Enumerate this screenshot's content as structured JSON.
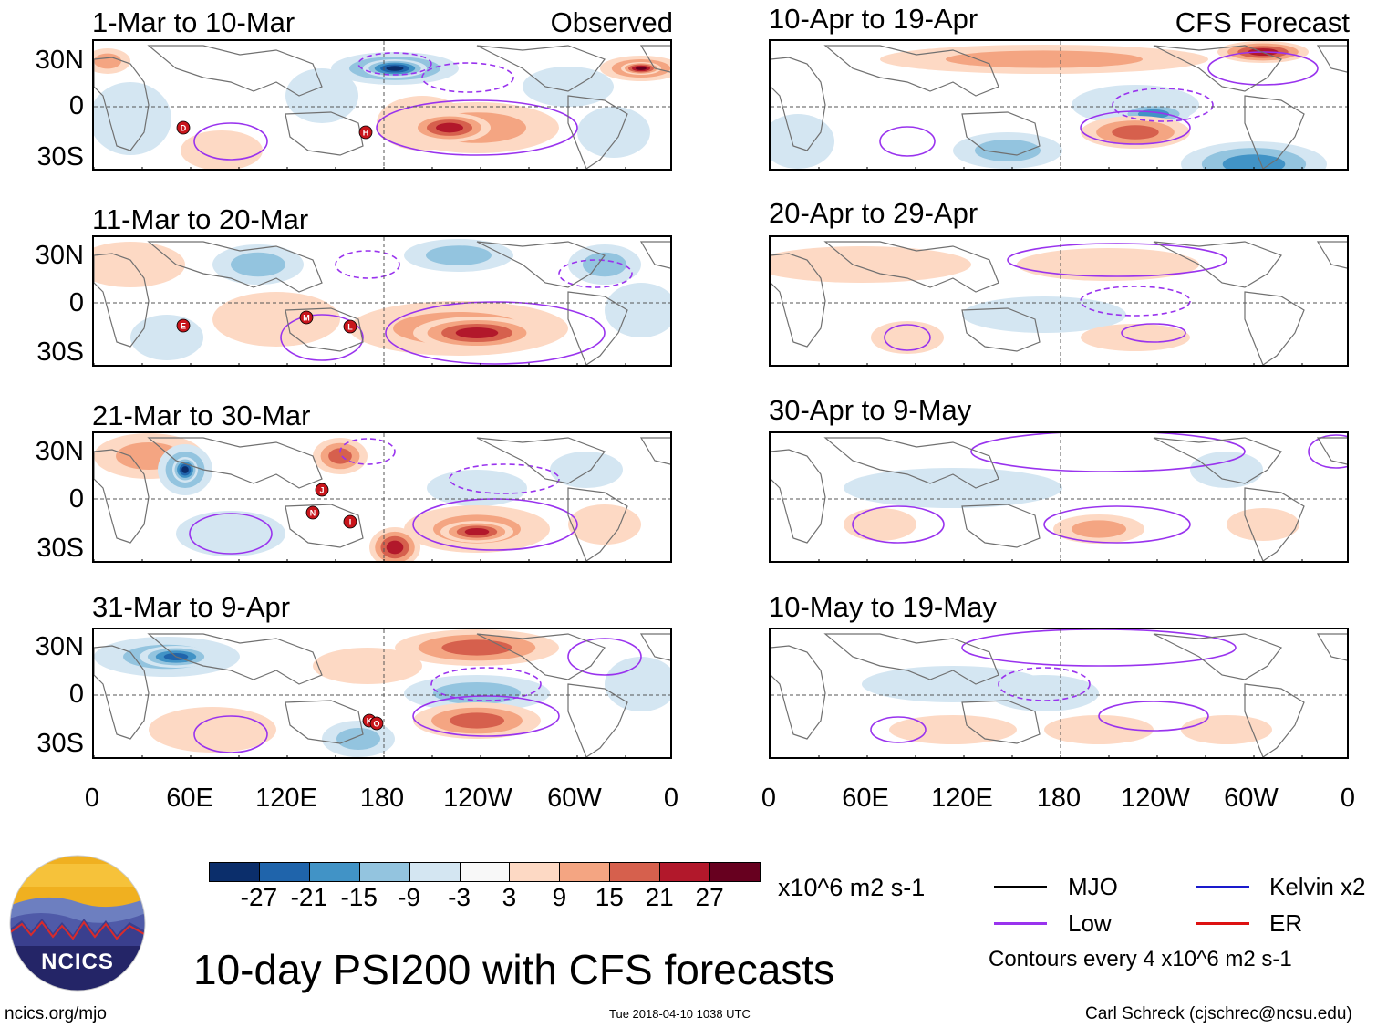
{
  "panels": [
    {
      "title": "1-Mar to 10-Mar",
      "tag": "Observed"
    },
    {
      "title": "11-Mar to 20-Mar",
      "tag": ""
    },
    {
      "title": "21-Mar to 30-Mar",
      "tag": ""
    },
    {
      "title": "31-Mar to 9-Apr",
      "tag": ""
    },
    {
      "title": "10-Apr to 19-Apr",
      "tag": "CFS Forecast"
    },
    {
      "title": "20-Apr to 29-Apr",
      "tag": ""
    },
    {
      "title": "30-Apr to 9-May",
      "tag": ""
    },
    {
      "title": "10-May to 19-May",
      "tag": ""
    }
  ],
  "lat_labels": [
    "30N",
    "0",
    "30S"
  ],
  "lon_labels": [
    "0",
    "60E",
    "120E",
    "180",
    "120W",
    "60W",
    "0"
  ],
  "colorbar": {
    "colors": [
      "#0b2e6b",
      "#1f64ab",
      "#4193c6",
      "#93c4df",
      "#d4e6f2",
      "#f8f8f8",
      "#fdd9c4",
      "#f4a582",
      "#d6604d",
      "#b2182b",
      "#67001f"
    ],
    "labels": [
      "-27",
      "-21",
      "-15",
      "-9",
      "-3",
      "3",
      "9",
      "15",
      "21",
      "27"
    ],
    "units": "x10^6 m2 s-1"
  },
  "legend": {
    "items": [
      {
        "label": "MJO",
        "color": "#000000"
      },
      {
        "label": "Kelvin x2",
        "color": "#1a1acc"
      },
      {
        "label": "Low",
        "color": "#9933ee"
      },
      {
        "label": "ER",
        "color": "#dd1111"
      }
    ],
    "contour_note": "Contours every 4 x10^6 m2 s-1"
  },
  "logo_text": "NCICS",
  "main_title": "10-day PSI200 with CFS forecasts",
  "footer": {
    "left": "ncics.org/mjo",
    "center": "Tue 2018-04-10 1038 UTC",
    "right": "Carl Schreck (cjschrec@ncsu.edu)"
  },
  "storm_markers": [
    [
      "D",
      "H"
    ],
    [
      "E",
      "M",
      "L"
    ],
    [
      "J",
      "N",
      "I"
    ],
    [
      "K",
      "O"
    ],
    [],
    [],
    [],
    []
  ]
}
